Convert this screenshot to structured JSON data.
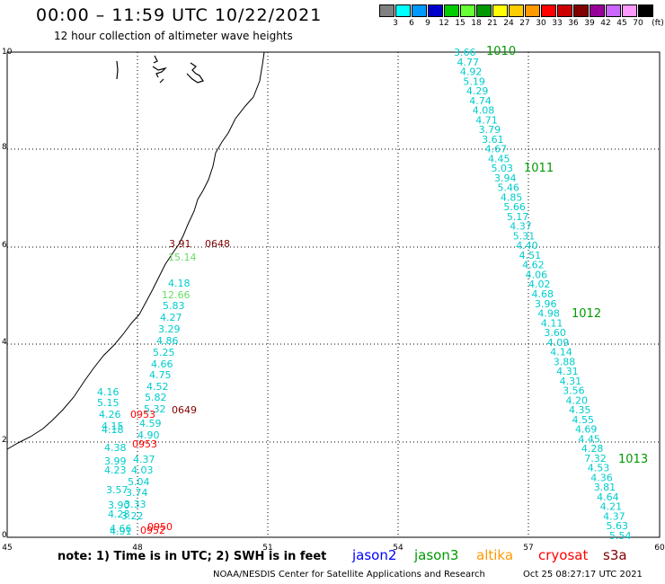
{
  "header": {
    "title": "00:00 – 11:59 UTC 10/22/2021",
    "subtitle": "12 hour collection of altimeter wave heights"
  },
  "legend": {
    "colors": [
      "#808080",
      "#00ffff",
      "#0099ff",
      "#0000cc",
      "#00cc00",
      "#66ff33",
      "#009900",
      "#ffff00",
      "#ffcc00",
      "#ff9900",
      "#ff0000",
      "#cc0000",
      "#800000",
      "#990099",
      "#cc66ff",
      "#ff99ff",
      "#000000"
    ],
    "ticks": [
      "3",
      "6",
      "9",
      "12",
      "15",
      "18",
      "21",
      "24",
      "27",
      "30",
      "33",
      "36",
      "39",
      "42",
      "45",
      "70"
    ],
    "unit": "(ft)"
  },
  "axes": {
    "x_ticks": [
      "45",
      "48",
      "51",
      "54",
      "57",
      "60"
    ],
    "y_ticks": [
      "0",
      "2",
      "4",
      "6",
      "8",
      "10"
    ]
  },
  "track_west": {
    "labels": [
      "3.91",
      "0648",
      "15.14",
      "4.18",
      "12.66",
      "5.83",
      "4.27",
      "3.29",
      "4.86",
      "5.25",
      "4.66",
      "4.75",
      "4.52",
      "4.16",
      "5.82",
      "5.15",
      "5.32",
      "4.26",
      "0953",
      "0649",
      "4.59",
      "4.15",
      "4.18",
      "4.90",
      "4.38",
      "0953",
      "4.37",
      "3.99",
      "4.03",
      "4.23",
      "5.04",
      "3.57",
      "3.74",
      "3.90",
      "3.33",
      "4.28",
      "3.22",
      "4.66",
      "4.91",
      "0950",
      "0952"
    ],
    "colors": {
      "cyan": "#00cccc",
      "green": "#66dd66",
      "red": "#ff0000",
      "maroon": "#800000"
    }
  },
  "track_east": {
    "values": [
      "3.66",
      "4.77",
      "4.92",
      "5.19",
      "4.29",
      "4.74",
      "4.08",
      "4.71",
      "3.79",
      "3.61",
      "4.67",
      "4.45",
      "5.03",
      "3.94",
      "5.46",
      "4.85",
      "5.66",
      "5.17",
      "4.37",
      "5.31",
      "4.40",
      "4.51",
      "4.62",
      "4.06",
      "4.02",
      "4.68",
      "3.96",
      "4.98",
      "4.11",
      "3.60",
      "4.09",
      "4.14",
      "3.88",
      "4.31",
      "4.31",
      "3.56",
      "4.20",
      "4.35",
      "4.55",
      "4.69",
      "4.45",
      "4.28",
      "7.32",
      "4.53",
      "4.36",
      "3.81",
      "4.64",
      "4.21",
      "4.37",
      "5.63",
      "5.54"
    ],
    "times": [
      "1010",
      "1011",
      "1012",
      "1013"
    ]
  },
  "footer": {
    "note": "note: 1) Time is in UTC; 2) SWH is in feet",
    "satellites": [
      {
        "name": "jason2",
        "color": "#0000ff"
      },
      {
        "name": "jason3",
        "color": "#009900"
      },
      {
        "name": "altika",
        "color": "#ff9900"
      },
      {
        "name": "cryosat",
        "color": "#ff0000"
      },
      {
        "name": "s3a",
        "color": "#800000"
      }
    ],
    "credit": "NOAA/NESDIS Center for Satellite Applications and Research",
    "timestamp": "Oct 25 08:27:17 UTC 2021"
  }
}
